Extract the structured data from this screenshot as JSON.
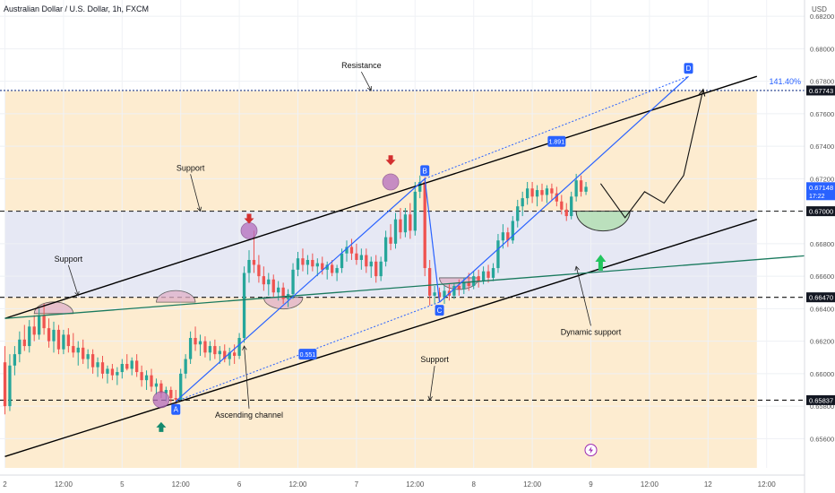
{
  "header": {
    "symbol_title": "Australian Dollar / U.S. Dollar, 1h, FXCM",
    "currency": "USD"
  },
  "colors": {
    "channel": "#000000",
    "trendline_green": "#1a7a5e",
    "pattern_blue": "#2962ff",
    "bearish_arrow": "#d32f2f",
    "bullish_arrow_teal": "#138a6e",
    "bullish_arrow_green": "#22c55e",
    "candle_up": "#26a69a",
    "candle_down": "#ef5350",
    "orange_zone": "#fde9c8",
    "blue_zone": "#e2e4f2",
    "highlight_circle": "#b46dbe",
    "curve_fill": "#e0b0c8",
    "green_cup": "#b7e0b8"
  },
  "chart_data": {
    "type": "candlestick",
    "symbol": "Australian Dollar / U.S. Dollar",
    "timeframe": "1h",
    "source": "FXCM",
    "y_axis": {
      "currency": "USD",
      "range": [
        0.6542,
        0.683
      ],
      "ticks": [
        0.656,
        0.658,
        0.66,
        0.662,
        0.664,
        0.666,
        0.668,
        0.67,
        0.672,
        0.674,
        0.676,
        0.678,
        0.68,
        0.682
      ]
    },
    "x_axis": {
      "range": [
        0,
        122
      ],
      "ticks": [
        {
          "t": 0,
          "label": "2"
        },
        {
          "t": 12,
          "label": "12:00"
        },
        {
          "t": 24,
          "label": "5"
        },
        {
          "t": 36,
          "label": "12:00"
        },
        {
          "t": 48,
          "label": "6"
        },
        {
          "t": 60,
          "label": "12:00"
        },
        {
          "t": 72,
          "label": "7"
        },
        {
          "t": 84,
          "label": "12:00"
        },
        {
          "t": 96,
          "label": "8"
        },
        {
          "t": 108,
          "label": "12:00"
        },
        {
          "t": 120,
          "label": "9"
        },
        {
          "t": 132,
          "label": "12:00"
        },
        {
          "t": 144,
          "label": "12"
        },
        {
          "t": 156,
          "label": "12:00"
        }
      ]
    },
    "price_tags": [
      {
        "value": 0.67743,
        "label": "0.67743",
        "style": "dark"
      },
      {
        "value": 0.67148,
        "label": "0.67148",
        "sub": "17:22",
        "style": "blue"
      },
      {
        "value": 0.67,
        "label": "0.67000",
        "style": "dark"
      },
      {
        "value": 0.6647,
        "label": "0.66470",
        "style": "dark"
      },
      {
        "value": 0.65837,
        "label": "0.65837",
        "style": "dark"
      }
    ],
    "horizontal_levels": [
      {
        "value": 0.67743,
        "style": "dotted",
        "color": "#1e3a8a"
      },
      {
        "value": 0.67,
        "style": "dashed"
      },
      {
        "value": 0.6647,
        "style": "dashed"
      },
      {
        "value": 0.65837,
        "style": "dashed"
      }
    ],
    "zones": [
      {
        "from": 0.67,
        "to": 0.6774,
        "color": "orange",
        "t_start": 0,
        "t_end": 154
      },
      {
        "from": 0.6647,
        "to": 0.67,
        "color": "blue",
        "t_start": 0,
        "t_end": 154
      },
      {
        "from": 0.6542,
        "to": 0.6647,
        "color": "orange",
        "t_start": 0,
        "t_end": 154
      }
    ],
    "channel": {
      "upper": [
        {
          "t": 0,
          "y": 0.6634
        },
        {
          "t": 154,
          "y": 0.6783
        }
      ],
      "lower": [
        {
          "t": 0,
          "y": 0.6549
        },
        {
          "t": 154,
          "y": 0.6695
        }
      ]
    },
    "green_trendline": [
      {
        "t": 0,
        "y": 0.6634
      },
      {
        "t": 170,
        "y": 0.6674
      }
    ],
    "abcd": {
      "points": [
        {
          "label": "A",
          "t": 35,
          "y": 0.6583
        },
        {
          "label": "B",
          "t": 86,
          "y": 0.672
        },
        {
          "label": "C",
          "t": 89,
          "y": 0.6644
        },
        {
          "label": "D",
          "t": 140,
          "y": 0.6783
        }
      ],
      "ratios": [
        {
          "label": "0.551",
          "t": 62,
          "y": 0.6612
        },
        {
          "label": "1.891",
          "t": 113,
          "y": 0.6743
        }
      ],
      "extension_label": "141.40%"
    },
    "candles": [
      {
        "o": 0.6607,
        "h": 0.6617,
        "l": 0.6575,
        "c": 0.658
      },
      {
        "o": 0.658,
        "h": 0.6612,
        "l": 0.6577,
        "c": 0.6605
      },
      {
        "o": 0.6605,
        "h": 0.6617,
        "l": 0.6599,
        "c": 0.6612
      },
      {
        "o": 0.6612,
        "h": 0.6626,
        "l": 0.6607,
        "c": 0.6621
      },
      {
        "o": 0.6621,
        "h": 0.663,
        "l": 0.6614,
        "c": 0.6617
      },
      {
        "o": 0.6617,
        "h": 0.6633,
        "l": 0.6613,
        "c": 0.6629
      },
      {
        "o": 0.6629,
        "h": 0.6636,
        "l": 0.662,
        "c": 0.6624
      },
      {
        "o": 0.6624,
        "h": 0.664,
        "l": 0.6621,
        "c": 0.6636
      },
      {
        "o": 0.6636,
        "h": 0.6643,
        "l": 0.6624,
        "c": 0.6628
      },
      {
        "o": 0.6628,
        "h": 0.6634,
        "l": 0.6616,
        "c": 0.662
      },
      {
        "o": 0.662,
        "h": 0.6632,
        "l": 0.6613,
        "c": 0.6627
      },
      {
        "o": 0.6627,
        "h": 0.663,
        "l": 0.6612,
        "c": 0.6615
      },
      {
        "o": 0.6615,
        "h": 0.6627,
        "l": 0.6612,
        "c": 0.6624
      },
      {
        "o": 0.6624,
        "h": 0.6628,
        "l": 0.6613,
        "c": 0.6617
      },
      {
        "o": 0.6617,
        "h": 0.6625,
        "l": 0.661,
        "c": 0.6613
      },
      {
        "o": 0.6613,
        "h": 0.662,
        "l": 0.6605,
        "c": 0.6616
      },
      {
        "o": 0.6616,
        "h": 0.6621,
        "l": 0.6606,
        "c": 0.6609
      },
      {
        "o": 0.6609,
        "h": 0.6615,
        "l": 0.6603,
        "c": 0.6612
      },
      {
        "o": 0.6612,
        "h": 0.6615,
        "l": 0.66,
        "c": 0.6604
      },
      {
        "o": 0.6604,
        "h": 0.661,
        "l": 0.6598,
        "c": 0.6607
      },
      {
        "o": 0.6607,
        "h": 0.6611,
        "l": 0.6597,
        "c": 0.66
      },
      {
        "o": 0.66,
        "h": 0.6605,
        "l": 0.6594,
        "c": 0.6603
      },
      {
        "o": 0.6603,
        "h": 0.6606,
        "l": 0.6596,
        "c": 0.6599
      },
      {
        "o": 0.6599,
        "h": 0.6604,
        "l": 0.6593,
        "c": 0.6601
      },
      {
        "o": 0.6601,
        "h": 0.6609,
        "l": 0.6597,
        "c": 0.6606
      },
      {
        "o": 0.6606,
        "h": 0.6612,
        "l": 0.6602,
        "c": 0.6603
      },
      {
        "o": 0.6603,
        "h": 0.661,
        "l": 0.6599,
        "c": 0.6608
      },
      {
        "o": 0.6608,
        "h": 0.6612,
        "l": 0.6598,
        "c": 0.6601
      },
      {
        "o": 0.6601,
        "h": 0.6605,
        "l": 0.6592,
        "c": 0.6596
      },
      {
        "o": 0.6596,
        "h": 0.6602,
        "l": 0.659,
        "c": 0.6599
      },
      {
        "o": 0.6599,
        "h": 0.6603,
        "l": 0.6589,
        "c": 0.6592
      },
      {
        "o": 0.6592,
        "h": 0.6597,
        "l": 0.6587,
        "c": 0.6594
      },
      {
        "o": 0.6594,
        "h": 0.6596,
        "l": 0.6585,
        "c": 0.6588
      },
      {
        "o": 0.6588,
        "h": 0.6592,
        "l": 0.6583,
        "c": 0.659
      },
      {
        "o": 0.659,
        "h": 0.6592,
        "l": 0.6582,
        "c": 0.6585
      },
      {
        "o": 0.6585,
        "h": 0.659,
        "l": 0.658,
        "c": 0.6584
      },
      {
        "o": 0.6584,
        "h": 0.6603,
        "l": 0.6583,
        "c": 0.66
      },
      {
        "o": 0.66,
        "h": 0.6612,
        "l": 0.6597,
        "c": 0.6609
      },
      {
        "o": 0.6609,
        "h": 0.6626,
        "l": 0.6606,
        "c": 0.6622
      },
      {
        "o": 0.6622,
        "h": 0.6629,
        "l": 0.6614,
        "c": 0.6618
      },
      {
        "o": 0.6618,
        "h": 0.6624,
        "l": 0.6611,
        "c": 0.662
      },
      {
        "o": 0.662,
        "h": 0.6623,
        "l": 0.661,
        "c": 0.6613
      },
      {
        "o": 0.6613,
        "h": 0.662,
        "l": 0.6608,
        "c": 0.6617
      },
      {
        "o": 0.6617,
        "h": 0.6621,
        "l": 0.6609,
        "c": 0.6612
      },
      {
        "o": 0.6612,
        "h": 0.6617,
        "l": 0.6606,
        "c": 0.6614
      },
      {
        "o": 0.6614,
        "h": 0.6618,
        "l": 0.6607,
        "c": 0.6609
      },
      {
        "o": 0.6609,
        "h": 0.6616,
        "l": 0.6605,
        "c": 0.6613
      },
      {
        "o": 0.6613,
        "h": 0.6618,
        "l": 0.6606,
        "c": 0.6611
      },
      {
        "o": 0.6611,
        "h": 0.6625,
        "l": 0.6609,
        "c": 0.6622
      },
      {
        "o": 0.6622,
        "h": 0.6666,
        "l": 0.6619,
        "c": 0.6662
      },
      {
        "o": 0.6662,
        "h": 0.6676,
        "l": 0.6656,
        "c": 0.667
      },
      {
        "o": 0.667,
        "h": 0.6688,
        "l": 0.6662,
        "c": 0.6667
      },
      {
        "o": 0.6667,
        "h": 0.6673,
        "l": 0.6656,
        "c": 0.666
      },
      {
        "o": 0.666,
        "h": 0.6666,
        "l": 0.6651,
        "c": 0.6655
      },
      {
        "o": 0.6655,
        "h": 0.6662,
        "l": 0.6648,
        "c": 0.6658
      },
      {
        "o": 0.6658,
        "h": 0.6661,
        "l": 0.6647,
        "c": 0.665
      },
      {
        "o": 0.665,
        "h": 0.6657,
        "l": 0.6645,
        "c": 0.6653
      },
      {
        "o": 0.6653,
        "h": 0.6656,
        "l": 0.6643,
        "c": 0.6646
      },
      {
        "o": 0.6646,
        "h": 0.6652,
        "l": 0.6641,
        "c": 0.6649
      },
      {
        "o": 0.6649,
        "h": 0.6668,
        "l": 0.6646,
        "c": 0.6664
      },
      {
        "o": 0.6664,
        "h": 0.6675,
        "l": 0.666,
        "c": 0.6671
      },
      {
        "o": 0.6671,
        "h": 0.6677,
        "l": 0.6663,
        "c": 0.6667
      },
      {
        "o": 0.6667,
        "h": 0.6673,
        "l": 0.6661,
        "c": 0.667
      },
      {
        "o": 0.667,
        "h": 0.6674,
        "l": 0.6663,
        "c": 0.6666
      },
      {
        "o": 0.6666,
        "h": 0.6671,
        "l": 0.666,
        "c": 0.6668
      },
      {
        "o": 0.6668,
        "h": 0.6672,
        "l": 0.6661,
        "c": 0.6664
      },
      {
        "o": 0.6664,
        "h": 0.6669,
        "l": 0.6658,
        "c": 0.6667
      },
      {
        "o": 0.6667,
        "h": 0.667,
        "l": 0.666,
        "c": 0.6662
      },
      {
        "o": 0.6662,
        "h": 0.6667,
        "l": 0.6657,
        "c": 0.6665
      },
      {
        "o": 0.6665,
        "h": 0.6677,
        "l": 0.6662,
        "c": 0.6674
      },
      {
        "o": 0.6674,
        "h": 0.6682,
        "l": 0.6669,
        "c": 0.6678
      },
      {
        "o": 0.6678,
        "h": 0.6683,
        "l": 0.667,
        "c": 0.6674
      },
      {
        "o": 0.6674,
        "h": 0.668,
        "l": 0.6667,
        "c": 0.667
      },
      {
        "o": 0.667,
        "h": 0.6677,
        "l": 0.6664,
        "c": 0.6673
      },
      {
        "o": 0.6673,
        "h": 0.6677,
        "l": 0.6662,
        "c": 0.6666
      },
      {
        "o": 0.6666,
        "h": 0.6672,
        "l": 0.6659,
        "c": 0.6669
      },
      {
        "o": 0.6669,
        "h": 0.6673,
        "l": 0.6656,
        "c": 0.666
      },
      {
        "o": 0.666,
        "h": 0.6672,
        "l": 0.6657,
        "c": 0.6669
      },
      {
        "o": 0.6669,
        "h": 0.6688,
        "l": 0.6666,
        "c": 0.6684
      },
      {
        "o": 0.6684,
        "h": 0.6692,
        "l": 0.6676,
        "c": 0.668
      },
      {
        "o": 0.668,
        "h": 0.6699,
        "l": 0.6677,
        "c": 0.6695
      },
      {
        "o": 0.6695,
        "h": 0.6702,
        "l": 0.6683,
        "c": 0.6687
      },
      {
        "o": 0.6687,
        "h": 0.6702,
        "l": 0.6684,
        "c": 0.6698
      },
      {
        "o": 0.6698,
        "h": 0.6705,
        "l": 0.6683,
        "c": 0.6688
      },
      {
        "o": 0.6688,
        "h": 0.6718,
        "l": 0.6685,
        "c": 0.6712
      },
      {
        "o": 0.6712,
        "h": 0.6722,
        "l": 0.6708,
        "c": 0.6718
      },
      {
        "o": 0.6718,
        "h": 0.6721,
        "l": 0.666,
        "c": 0.6665
      },
      {
        "o": 0.6665,
        "h": 0.667,
        "l": 0.6642,
        "c": 0.6648
      },
      {
        "o": 0.6648,
        "h": 0.6654,
        "l": 0.6643,
        "c": 0.665
      },
      {
        "o": 0.665,
        "h": 0.6653,
        "l": 0.6644,
        "c": 0.6647
      },
      {
        "o": 0.6647,
        "h": 0.6654,
        "l": 0.6643,
        "c": 0.6651
      },
      {
        "o": 0.6651,
        "h": 0.6655,
        "l": 0.6645,
        "c": 0.6648
      },
      {
        "o": 0.6648,
        "h": 0.6656,
        "l": 0.6646,
        "c": 0.6654
      },
      {
        "o": 0.6654,
        "h": 0.6658,
        "l": 0.6648,
        "c": 0.6652
      },
      {
        "o": 0.6652,
        "h": 0.6659,
        "l": 0.6649,
        "c": 0.6656
      },
      {
        "o": 0.6656,
        "h": 0.6662,
        "l": 0.6651,
        "c": 0.6654
      },
      {
        "o": 0.6654,
        "h": 0.6663,
        "l": 0.6652,
        "c": 0.666
      },
      {
        "o": 0.666,
        "h": 0.6664,
        "l": 0.6653,
        "c": 0.6657
      },
      {
        "o": 0.6657,
        "h": 0.6666,
        "l": 0.6655,
        "c": 0.6663
      },
      {
        "o": 0.6663,
        "h": 0.6667,
        "l": 0.6656,
        "c": 0.6659
      },
      {
        "o": 0.6659,
        "h": 0.6668,
        "l": 0.6657,
        "c": 0.6665
      },
      {
        "o": 0.6665,
        "h": 0.6686,
        "l": 0.6662,
        "c": 0.6682
      },
      {
        "o": 0.6682,
        "h": 0.6692,
        "l": 0.6677,
        "c": 0.6687
      },
      {
        "o": 0.6687,
        "h": 0.669,
        "l": 0.6678,
        "c": 0.6682
      },
      {
        "o": 0.6682,
        "h": 0.6697,
        "l": 0.668,
        "c": 0.6694
      },
      {
        "o": 0.6694,
        "h": 0.6707,
        "l": 0.669,
        "c": 0.6703
      },
      {
        "o": 0.6703,
        "h": 0.6712,
        "l": 0.6697,
        "c": 0.6708
      },
      {
        "o": 0.6708,
        "h": 0.6718,
        "l": 0.6704,
        "c": 0.6714
      },
      {
        "o": 0.6714,
        "h": 0.6718,
        "l": 0.6705,
        "c": 0.6709
      },
      {
        "o": 0.6709,
        "h": 0.6716,
        "l": 0.6703,
        "c": 0.6713
      },
      {
        "o": 0.6713,
        "h": 0.6717,
        "l": 0.6706,
        "c": 0.671
      },
      {
        "o": 0.671,
        "h": 0.6716,
        "l": 0.6705,
        "c": 0.6714
      },
      {
        "o": 0.6714,
        "h": 0.6717,
        "l": 0.6707,
        "c": 0.6711
      },
      {
        "o": 0.6711,
        "h": 0.6715,
        "l": 0.6703,
        "c": 0.6706
      },
      {
        "o": 0.6706,
        "h": 0.671,
        "l": 0.6698,
        "c": 0.6701
      },
      {
        "o": 0.6701,
        "h": 0.6705,
        "l": 0.6694,
        "c": 0.6697
      },
      {
        "o": 0.6697,
        "h": 0.6712,
        "l": 0.6695,
        "c": 0.6709
      },
      {
        "o": 0.6709,
        "h": 0.6723,
        "l": 0.6706,
        "c": 0.6719
      },
      {
        "o": 0.6719,
        "h": 0.6722,
        "l": 0.6709,
        "c": 0.6712
      },
      {
        "o": 0.6712,
        "h": 0.6718,
        "l": 0.671,
        "c": 0.6715
      }
    ],
    "projection_path": [
      {
        "t": 122,
        "y": 0.6717
      },
      {
        "t": 127,
        "y": 0.6696
      },
      {
        "t": 131,
        "y": 0.6712
      },
      {
        "t": 135,
        "y": 0.6705
      },
      {
        "t": 139,
        "y": 0.6722
      },
      {
        "t": 143,
        "y": 0.6775
      }
    ],
    "annotations": [
      {
        "text": "Resistance",
        "t": 73,
        "y": 0.6788,
        "arrow_to_t": 75,
        "arrow_to_y": 0.67743
      },
      {
        "text": "Support",
        "t": 38,
        "y": 0.6725,
        "arrow_to_t": 40,
        "arrow_to_y": 0.67
      },
      {
        "text": "Support",
        "t": 13,
        "y": 0.6669,
        "arrow_to_t": 15,
        "arrow_to_y": 0.6648
      },
      {
        "text": "Support",
        "t": 88,
        "y": 0.6607,
        "arrow_to_t": 87,
        "arrow_to_y": 0.65837
      },
      {
        "text": "Ascending channel",
        "t": 50,
        "y": 0.6573,
        "arrow_to_t": 49,
        "arrow_to_y": 0.6617
      },
      {
        "text": "Dynamic support",
        "t": 120,
        "y": 0.6624,
        "arrow_to_t": 117,
        "arrow_to_y": 0.6666
      }
    ],
    "markers": {
      "bearish_arrows": [
        {
          "t": 50,
          "y": 0.6694
        },
        {
          "t": 79,
          "y": 0.673
        }
      ],
      "bullish_arrow_teal": {
        "t": 32,
        "y": 0.6568
      },
      "bullish_arrow_green": {
        "t": 122,
        "y": 0.667
      },
      "circles": [
        {
          "t": 32,
          "y": 0.6584
        },
        {
          "t": 50,
          "y": 0.6688
        },
        {
          "t": 79,
          "y": 0.6718
        }
      ],
      "bumps": [
        {
          "t_from": 6,
          "t_to": 14,
          "y": 0.6637,
          "dir": "up"
        },
        {
          "t_from": 31,
          "t_to": 39,
          "y": 0.6644,
          "dir": "up"
        },
        {
          "t_from": 53,
          "t_to": 61,
          "y": 0.6647,
          "dir": "down"
        },
        {
          "t_from": 89,
          "t_to": 97,
          "y": 0.6659,
          "dir": "down"
        }
      ],
      "green_cup": {
        "t_from": 117,
        "t_to": 128,
        "y": 0.67
      },
      "flash_icon": {
        "t": 120,
        "y": 0.6553
      }
    }
  }
}
